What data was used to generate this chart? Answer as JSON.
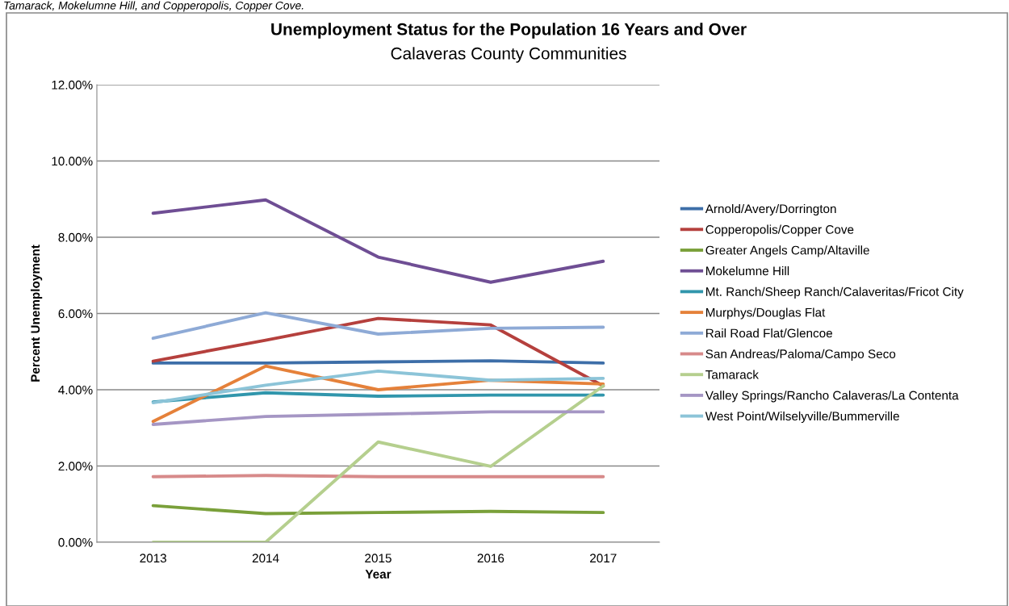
{
  "chart_data": {
    "type": "line",
    "title": "Unemployment Status for the Population 16 Years and Over",
    "subtitle": "Calaveras County Communities",
    "xlabel": "Year",
    "ylabel": "Percent Unemployment",
    "annotations": [
      "Tamarack, Mokelumne Hill, and Copperopolis, Copper Cove."
    ],
    "categories": [
      "2013",
      "2014",
      "2015",
      "2016",
      "2017"
    ],
    "series": [
      {
        "name": "Arnold/Avery/Dorrington",
        "color": "#3d6ea8",
        "values": [
          4.7,
          4.7,
          4.73,
          4.76,
          4.7
        ]
      },
      {
        "name": "Copperopolis/Copper Cove",
        "color": "#b5403d",
        "values": [
          4.75,
          5.3,
          5.87,
          5.7,
          4.1
        ]
      },
      {
        "name": "Greater Angels Camp/Altaville",
        "color": "#7aa03a",
        "values": [
          0.96,
          0.75,
          0.78,
          0.81,
          0.78
        ]
      },
      {
        "name": "Mokelumne Hill",
        "color": "#6f4e94",
        "values": [
          8.63,
          8.98,
          7.48,
          6.82,
          7.37
        ]
      },
      {
        "name": "Mt. Ranch/Sheep Ranch/Calaveritas/Fricot City",
        "color": "#3196ac",
        "values": [
          3.68,
          3.92,
          3.83,
          3.86,
          3.86
        ]
      },
      {
        "name": "Murphys/Douglas Flat",
        "color": "#e5813a",
        "values": [
          3.17,
          4.62,
          4.0,
          4.25,
          4.15
        ]
      },
      {
        "name": "Rail Road Flat/Glencoe",
        "color": "#8eaad6",
        "values": [
          5.35,
          6.02,
          5.46,
          5.61,
          5.64
        ]
      },
      {
        "name": "San Andreas/Paloma/Campo Seco",
        "color": "#d78a8a",
        "values": [
          1.72,
          1.75,
          1.72,
          1.72,
          1.72
        ]
      },
      {
        "name": "Tamarack",
        "color": "#b5cf8e",
        "values": [
          0,
          0,
          2.63,
          1.99,
          4.1
        ]
      },
      {
        "name": "Valley Springs/Rancho Calaveras/La Contenta",
        "color": "#a596c4",
        "values": [
          3.09,
          3.3,
          3.36,
          3.42,
          3.42
        ]
      },
      {
        "name": "West Point/Wilselyville/Bummerville",
        "color": "#8cc4d8",
        "values": [
          3.66,
          4.12,
          4.49,
          4.25,
          4.3
        ]
      }
    ],
    "ylim": [
      0,
      12
    ],
    "yticks": [
      {
        "value": 0,
        "label": "0.00%"
      },
      {
        "value": 2,
        "label": "2.00%"
      },
      {
        "value": 4,
        "label": "4.00%"
      },
      {
        "value": 6,
        "label": "6.00%"
      },
      {
        "value": 8,
        "label": "8.00%"
      },
      {
        "value": 10,
        "label": "10.00%"
      },
      {
        "value": 12,
        "label": "12.00%"
      }
    ],
    "grid": "y",
    "legend": "right",
    "marker": "none",
    "line_style": "solid"
  }
}
